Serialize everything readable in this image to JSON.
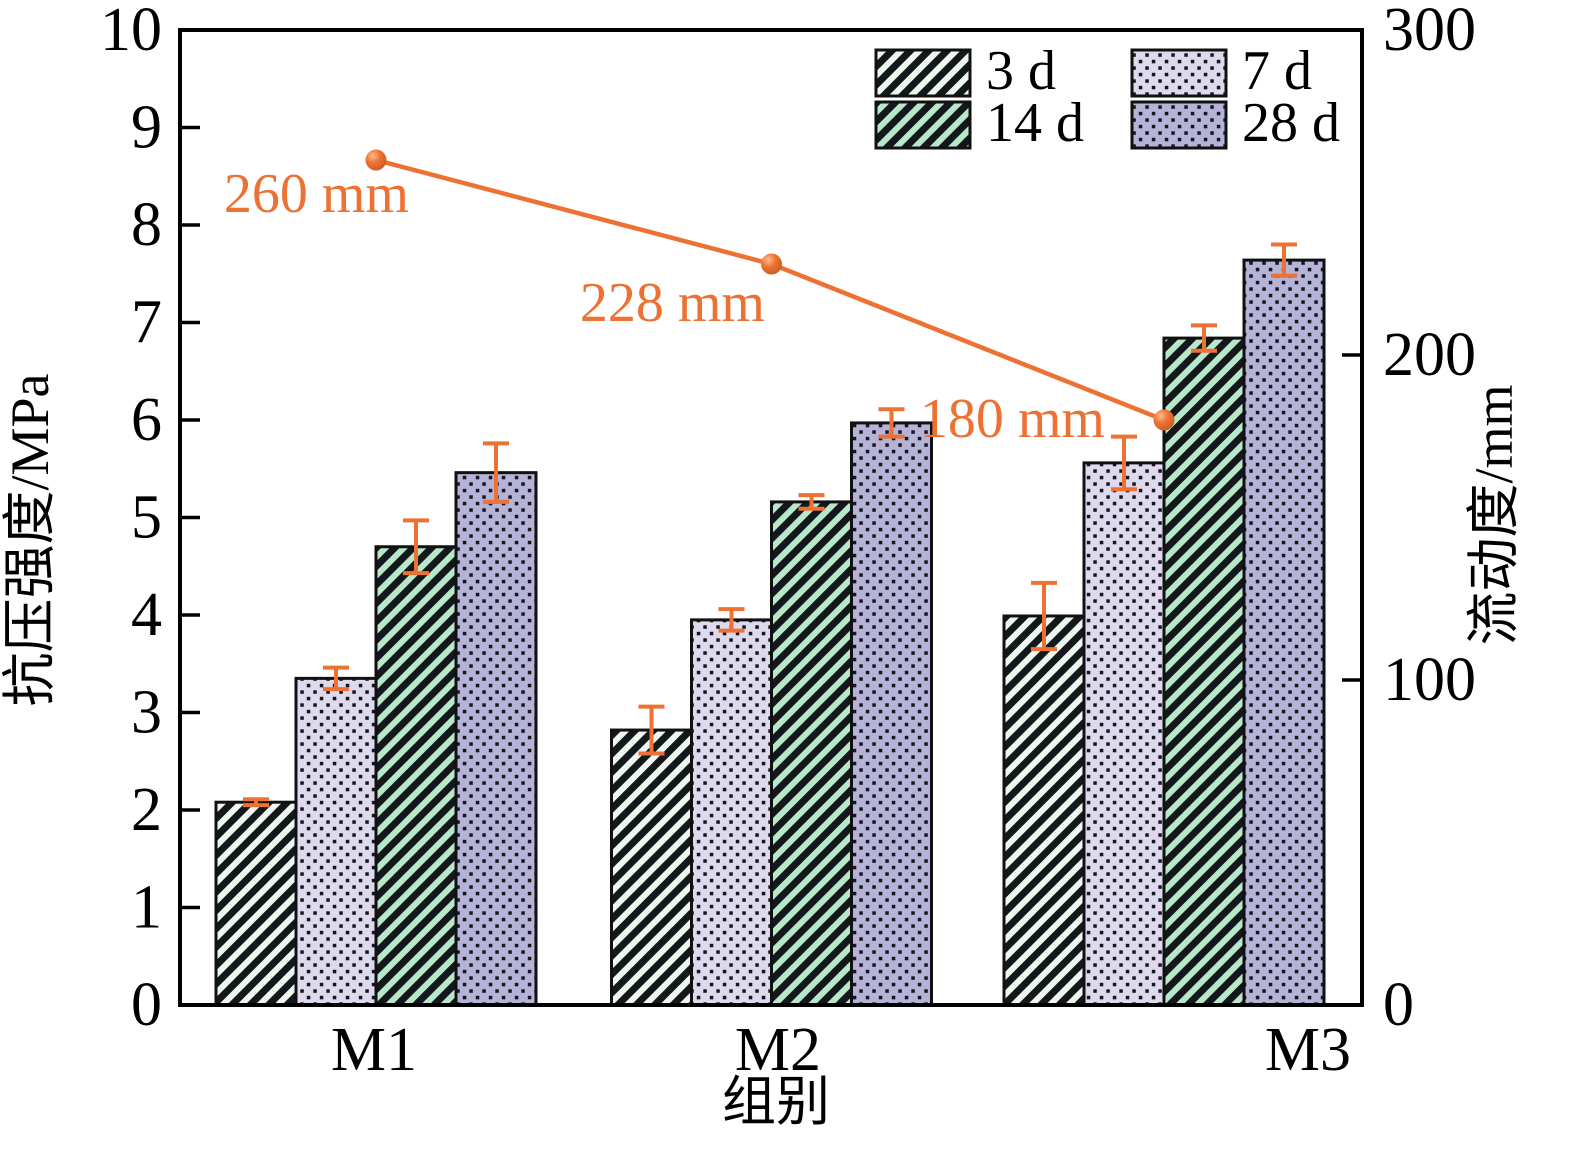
{
  "figure": {
    "background": "#ffffff",
    "frame_color": "#000000",
    "accent_orange": "#ED7133",
    "hatch_ink": "#14181d"
  },
  "chart_data": {
    "type": "bar",
    "title": "",
    "categories": [
      "M1",
      "M2",
      "M3"
    ],
    "series": [
      {
        "name": "3 d",
        "values": [
          2.08,
          2.82,
          3.99
        ],
        "errors": [
          0.03,
          0.24,
          0.34
        ],
        "fill": "#edf7f0",
        "pattern": "diagonal-hatch"
      },
      {
        "name": "7 d",
        "values": [
          3.35,
          3.95,
          5.56
        ],
        "errors": [
          0.11,
          0.11,
          0.27
        ],
        "fill": "#ded9ec",
        "pattern": "dot-grid"
      },
      {
        "name": "14 d",
        "values": [
          4.7,
          5.16,
          6.84
        ],
        "errors": [
          0.27,
          0.07,
          0.13
        ],
        "fill": "#b9e7ca",
        "pattern": "diagonal-hatch"
      },
      {
        "name": "28 d",
        "values": [
          5.46,
          5.97,
          7.64
        ],
        "errors": [
          0.3,
          0.14,
          0.16
        ],
        "fill": "#b5b3d8",
        "pattern": "dot-grid"
      }
    ],
    "line_series": {
      "name": "流动度",
      "axis": "right",
      "values": [
        260,
        228,
        180
      ],
      "point_labels": [
        "260 mm",
        "228 mm",
        "180 mm"
      ],
      "color": "#ED7133"
    },
    "left_axis": {
      "label": "抗压强度/MPa",
      "min": 0,
      "max": 10,
      "ticks": [
        0,
        1,
        2,
        3,
        4,
        5,
        6,
        7,
        8,
        9,
        10
      ]
    },
    "right_axis": {
      "label": "流动度/mm",
      "min": 0,
      "max": 300,
      "ticks": [
        0,
        100,
        200,
        300
      ]
    },
    "x_axis": {
      "label": "组别"
    },
    "legend": {
      "items": [
        "3 d",
        "7 d",
        "14 d",
        "28 d"
      ],
      "columns": 2,
      "position": "top-right"
    },
    "grid": false,
    "error_bar_color": "#ED7133"
  }
}
